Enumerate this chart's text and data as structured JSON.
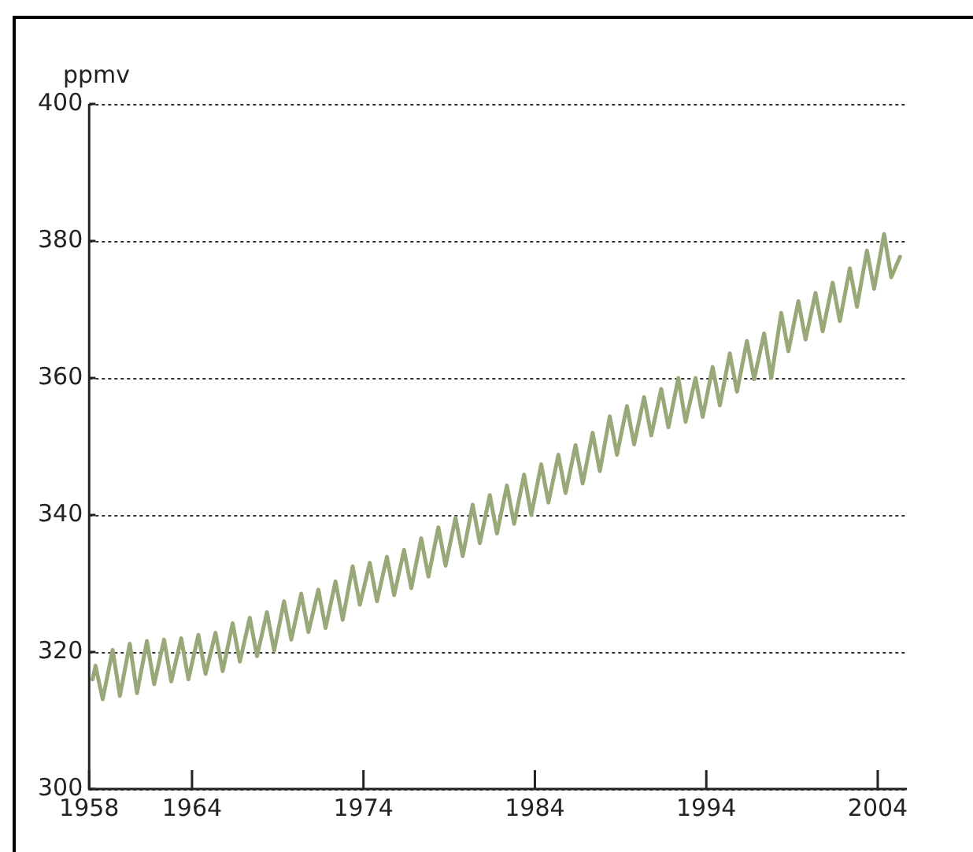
{
  "chart_data": {
    "type": "line",
    "ylabel": "ppmv",
    "xlim": [
      1958,
      2005.7
    ],
    "xticks": [
      1958,
      1964,
      1974,
      1984,
      1994,
      2004
    ],
    "ylim": [
      300,
      400
    ],
    "yticks": [
      300,
      320,
      340,
      360,
      380,
      400
    ],
    "grid": "y",
    "legend": false,
    "marker": "none",
    "line_style": "solid",
    "series": [
      {
        "color": "#99a878",
        "x": [
          1958.2,
          1958.37,
          1958.79,
          1959.37,
          1959.79,
          1960.37,
          1960.79,
          1961.37,
          1961.79,
          1962.37,
          1962.79,
          1963.37,
          1963.79,
          1964.37,
          1964.79,
          1965.37,
          1965.79,
          1966.37,
          1966.79,
          1967.37,
          1967.79,
          1968.37,
          1968.79,
          1969.37,
          1969.79,
          1970.37,
          1970.79,
          1971.37,
          1971.79,
          1972.37,
          1972.79,
          1973.37,
          1973.79,
          1974.37,
          1974.79,
          1975.37,
          1975.79,
          1976.37,
          1976.79,
          1977.37,
          1977.79,
          1978.37,
          1978.79,
          1979.37,
          1979.79,
          1980.37,
          1980.79,
          1981.37,
          1981.79,
          1982.37,
          1982.79,
          1983.37,
          1983.79,
          1984.37,
          1984.79,
          1985.37,
          1985.79,
          1986.37,
          1986.79,
          1987.37,
          1987.79,
          1988.37,
          1988.79,
          1989.37,
          1989.79,
          1990.37,
          1990.79,
          1991.37,
          1991.79,
          1992.37,
          1992.79,
          1993.37,
          1993.79,
          1994.37,
          1994.79,
          1995.37,
          1995.79,
          1996.37,
          1996.79,
          1997.37,
          1997.79,
          1998.37,
          1998.79,
          1999.37,
          1999.79,
          2000.37,
          2000.79,
          2001.37,
          2001.79,
          2002.37,
          2002.79,
          2003.37,
          2003.79,
          2004.37,
          2004.79,
          2005.3
        ],
        "values": [
          316.0,
          318.0,
          313.1,
          320.3,
          313.6,
          321.2,
          314.0,
          321.6,
          315.3,
          321.8,
          315.7,
          322.0,
          316.0,
          322.5,
          316.8,
          322.8,
          317.2,
          324.2,
          318.6,
          325.0,
          319.4,
          325.8,
          320.2,
          327.4,
          321.8,
          328.5,
          322.9,
          329.1,
          323.5,
          330.3,
          324.7,
          332.5,
          326.9,
          333.0,
          327.4,
          333.9,
          328.3,
          334.9,
          329.3,
          336.6,
          331.0,
          338.2,
          332.6,
          339.6,
          334.0,
          341.5,
          335.9,
          342.9,
          337.3,
          344.3,
          338.7,
          345.9,
          340.0,
          347.4,
          341.8,
          348.8,
          343.2,
          350.2,
          344.6,
          352.0,
          346.4,
          354.4,
          348.8,
          355.9,
          350.3,
          357.2,
          351.6,
          358.4,
          352.8,
          360.0,
          353.6,
          360.0,
          354.3,
          361.6,
          356.0,
          363.6,
          358.0,
          365.4,
          359.8,
          366.5,
          360.0,
          369.5,
          363.9,
          371.2,
          365.6,
          372.4,
          366.8,
          373.9,
          368.3,
          376.0,
          370.4,
          378.6,
          373.0,
          381.0,
          374.7,
          377.7
        ]
      }
    ]
  }
}
